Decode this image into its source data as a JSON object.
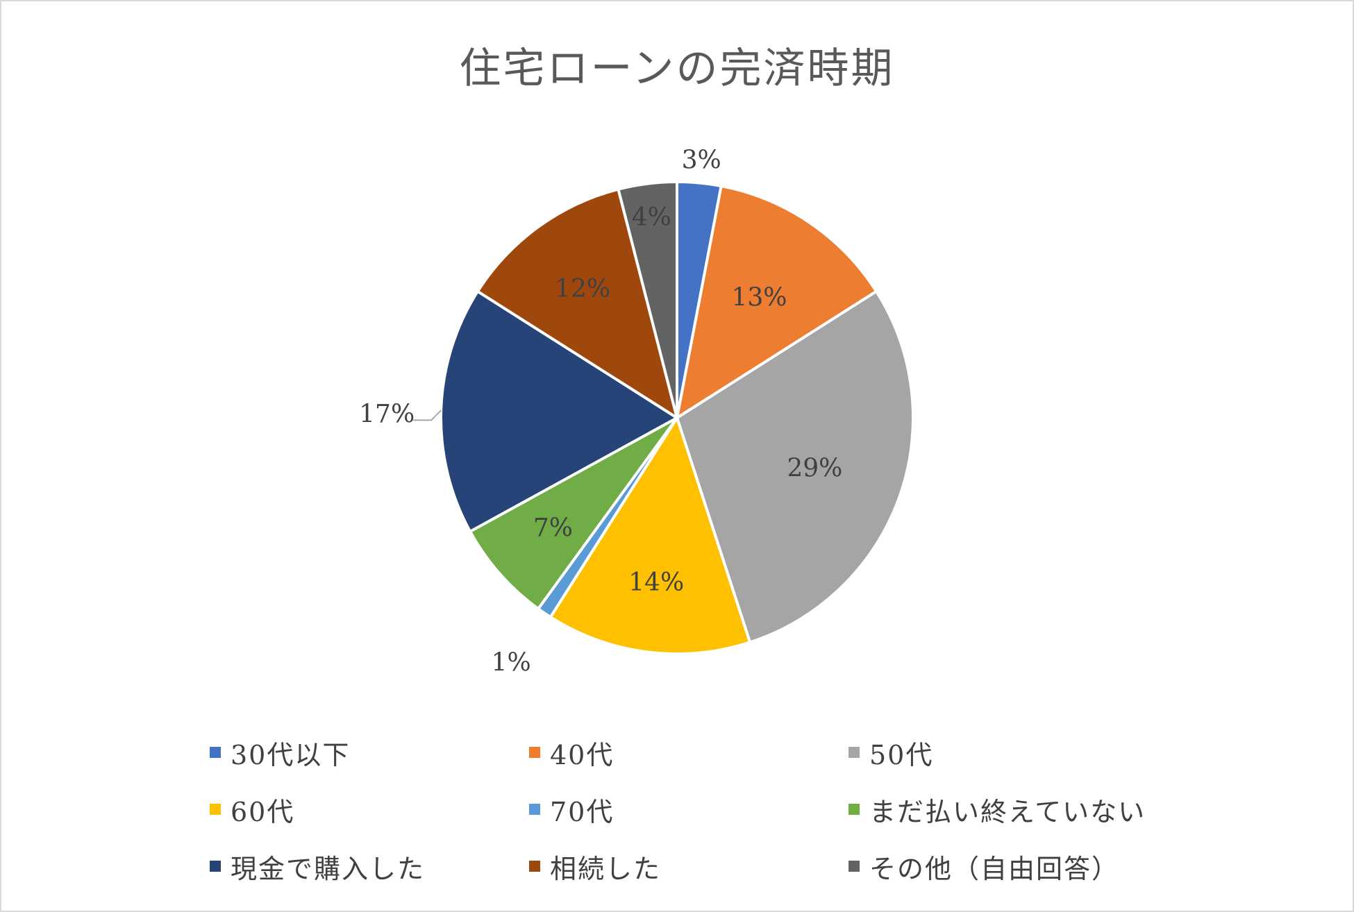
{
  "chart_data": {
    "type": "pie",
    "title": "住宅ローンの完済時期",
    "legend_position": "bottom",
    "slices": [
      {
        "label": "30代以下",
        "value": 3,
        "display": "3%",
        "color": "#4472c4"
      },
      {
        "label": "40代",
        "value": 13,
        "display": "13%",
        "color": "#ed7d31"
      },
      {
        "label": "50代",
        "value": 29,
        "display": "29%",
        "color": "#a5a5a5"
      },
      {
        "label": "60代",
        "value": 14,
        "display": "14%",
        "color": "#ffc000"
      },
      {
        "label": "70代",
        "value": 1,
        "display": "1%",
        "color": "#5b9bd5"
      },
      {
        "label": "まだ払い終えていない",
        "value": 7,
        "display": "7%",
        "color": "#70ad47"
      },
      {
        "label": "現金で購入した",
        "value": 17,
        "display": "17%",
        "color": "#264478"
      },
      {
        "label": "相続した",
        "value": 12,
        "display": "12%",
        "color": "#9e480e"
      },
      {
        "label": "その他（自由回答）",
        "value": 4,
        "display": "4%",
        "color": "#636363"
      }
    ]
  }
}
